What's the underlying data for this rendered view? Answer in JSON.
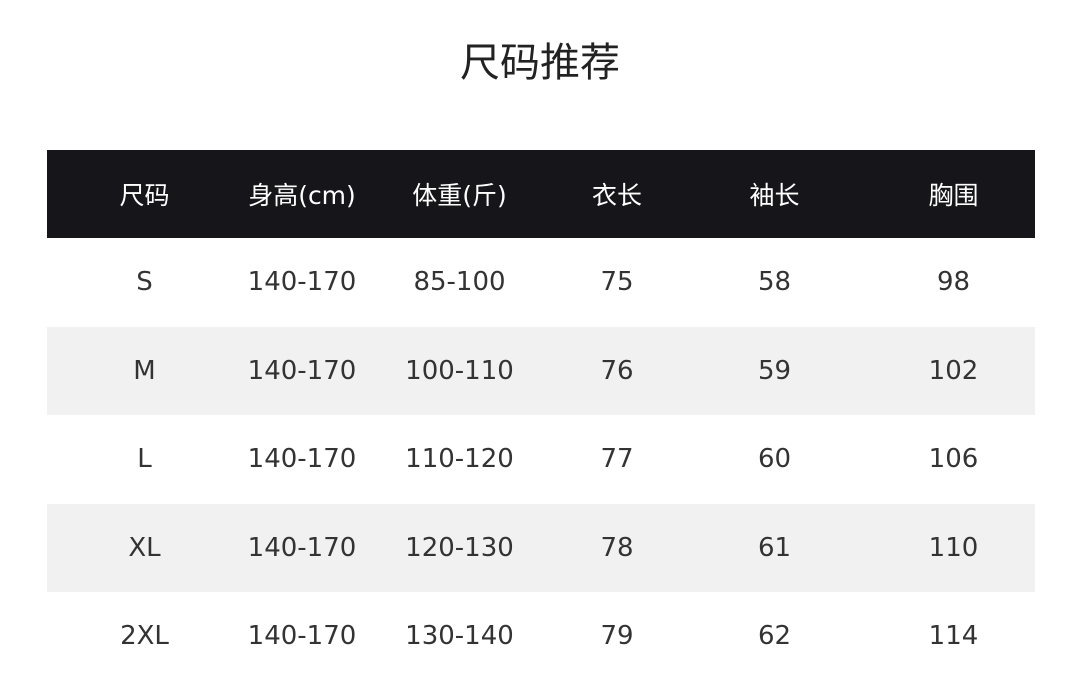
{
  "title": "尺码推荐",
  "headers": [
    "尺码",
    "身高(cm)",
    "体重(斤)",
    "衣长",
    "袖长",
    "胸围"
  ],
  "rows": [
    [
      "S",
      "140-170",
      "85-100",
      "75",
      "58",
      "98"
    ],
    [
      "M",
      "140-170",
      "100-110",
      "76",
      "59",
      "102"
    ],
    [
      "L",
      "140-170",
      "110-120",
      "77",
      "60",
      "106"
    ],
    [
      "XL",
      "140-170",
      "120-130",
      "78",
      "61",
      "110"
    ],
    [
      "2XL",
      "140-170",
      "130-140",
      "79",
      "62",
      "114"
    ]
  ]
}
